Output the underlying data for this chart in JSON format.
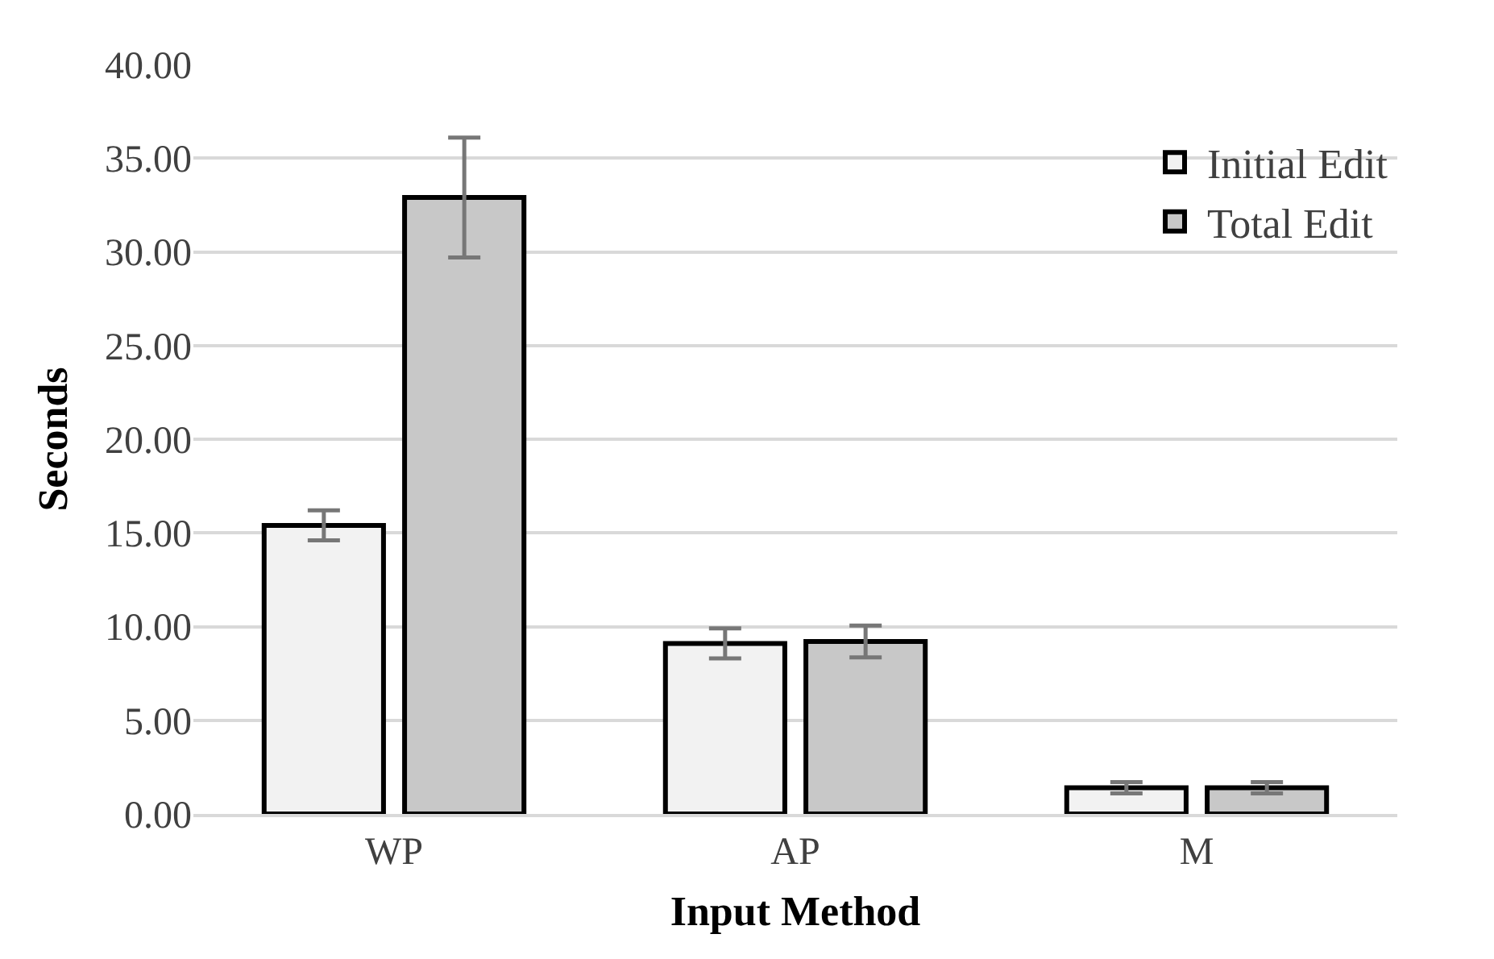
{
  "chart_data": {
    "type": "bar",
    "xlabel": "Input Method",
    "ylabel": "Seconds",
    "categories": [
      "WP",
      "AP",
      "M"
    ],
    "series": [
      {
        "name": "Initial Edit",
        "color": "#f2f2f2",
        "values": [
          15.4,
          9.1,
          1.4
        ],
        "errors": [
          0.8,
          0.8,
          0.3
        ]
      },
      {
        "name": "Total Edit",
        "color": "#c8c8c8",
        "values": [
          32.9,
          9.2,
          1.4
        ],
        "errors": [
          3.2,
          0.85,
          0.3
        ]
      }
    ],
    "ylim": [
      0,
      40
    ],
    "yticks": [
      {
        "value": 0,
        "label": "0.00"
      },
      {
        "value": 5,
        "label": "5.00"
      },
      {
        "value": 10,
        "label": "10.00"
      },
      {
        "value": 15,
        "label": "15.00"
      },
      {
        "value": 20,
        "label": "20.00"
      },
      {
        "value": 25,
        "label": "25.00"
      },
      {
        "value": 30,
        "label": "30.00"
      },
      {
        "value": 35,
        "label": "35.00"
      },
      {
        "value": 40,
        "label": "40.00"
      }
    ],
    "grid": "y",
    "legend": "top right"
  }
}
